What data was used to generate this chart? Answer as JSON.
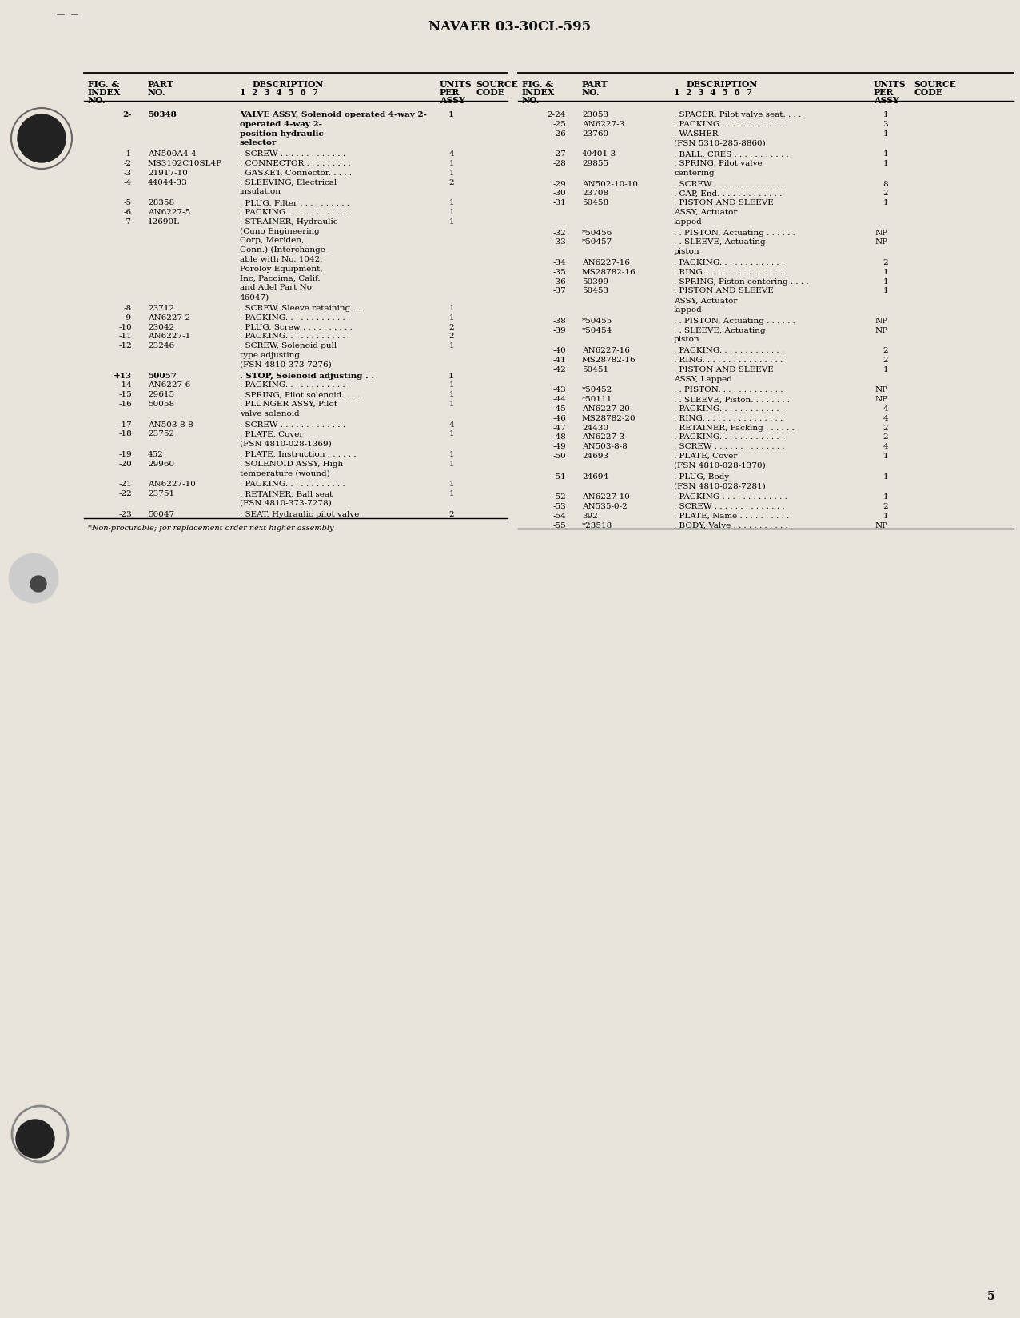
{
  "title": "NAVAER 03-30CL-595",
  "page_num": "5",
  "bg_color": "#e8e4dc",
  "text_color": "#1a1a1a",
  "left_rows": [
    {
      "idx": "2-",
      "part": "50348",
      "desc": "VALVE ASSY, Solenoid operated 4-way 2-\n        operated 4-way 2-\n        position hydraulic\n        selector",
      "qty": "1",
      "bold": true
    },
    {
      "idx": "-1",
      "part": "AN500A4-4",
      "desc": ". SCREW . . . . . . . . . . . . .",
      "qty": "4",
      "bold": false
    },
    {
      "idx": "-2",
      "part": "MS3102C10SL4P",
      "desc": ". CONNECTOR . . . . . . . . .",
      "qty": "1",
      "bold": false
    },
    {
      "idx": "-3",
      "part": "21917-10",
      "desc": ". GASKET, Connector. . . . .",
      "qty": "1",
      "bold": false
    },
    {
      "idx": "-4",
      "part": "44044-33",
      "desc": ". SLEEVING, Electrical\n                insulation",
      "qty": "2",
      "bold": false
    },
    {
      "idx": "-5",
      "part": "28358",
      "desc": ". PLUG, Filter . . . . . . . . . .",
      "qty": "1",
      "bold": false
    },
    {
      "idx": "-6",
      "part": "AN6227-5",
      "desc": ". PACKING. . . . . . . . . . . . .",
      "qty": "1",
      "bold": false
    },
    {
      "idx": "-7",
      "part": "12690L",
      "desc": ". STRAINER, Hydraulic\n            (Cuno Engineering\n            Corp, Meriden,\n            Conn.) (Interchange-\n            able with No. 1042,\n            Poroloy Equipment,\n            Inc, Pacoima, Calif.\n            and Adel Part No.\n            46047)",
      "qty": "1",
      "bold": false
    },
    {
      "idx": "-8",
      "part": "23712",
      "desc": ". SCREW, Sleeve retaining . .",
      "qty": "1",
      "bold": false
    },
    {
      "idx": "-9",
      "part": "AN6227-2",
      "desc": ". PACKING. . . . . . . . . . . . .",
      "qty": "1",
      "bold": false
    },
    {
      "idx": "-10",
      "part": "23042",
      "desc": ". PLUG, Screw . . . . . . . . . .",
      "qty": "2",
      "bold": false
    },
    {
      "idx": "-11",
      "part": "AN6227-1",
      "desc": ". PACKING. . . . . . . . . . . . .",
      "qty": "2",
      "bold": false
    },
    {
      "idx": "-12",
      "part": "23246",
      "desc": ". SCREW, Solenoid pull\n            type adjusting\n            (FSN 4810-373-7276)",
      "qty": "1",
      "bold": false
    },
    {
      "idx": "+13",
      "part": "50057",
      "desc": ". STOP, Solenoid adjusting . .",
      "qty": "1",
      "bold": true
    },
    {
      "idx": "-14",
      "part": "AN6227-6",
      "desc": ". PACKING. . . . . . . . . . . . .",
      "qty": "1",
      "bold": false
    },
    {
      "idx": "-15",
      "part": "29615",
      "desc": ". SPRING, Pilot solenoid. . . .",
      "qty": "1",
      "bold": false
    },
    {
      "idx": "-16",
      "part": "50058",
      "desc": ". PLUNGER ASSY, Pilot\n            valve solenoid",
      "qty": "1",
      "bold": false
    },
    {
      "idx": "-17",
      "part": "AN503-8-8",
      "desc": ". SCREW . . . . . . . . . . . . .",
      "qty": "4",
      "bold": false
    },
    {
      "idx": "-18",
      "part": "23752",
      "desc": ". PLATE, Cover\n            (FSN 4810-028-1369)",
      "qty": "1",
      "bold": false
    },
    {
      "idx": "-19",
      "part": "452",
      "desc": ". PLATE, Instruction . . . . . .",
      "qty": "1",
      "bold": false
    },
    {
      "idx": "-20",
      "part": "29960",
      "desc": ". SOLENOID ASSY, High\n            temperature (wound)",
      "qty": "1",
      "bold": false
    },
    {
      "idx": "-21",
      "part": "AN6227-10",
      "desc": ". PACKING. . . . . . . . . . . .",
      "qty": "1",
      "bold": false
    },
    {
      "idx": "-22",
      "part": "23751",
      "desc": ". RETAINER, Ball seat\n            (FSN 4810-373-7278)",
      "qty": "1",
      "bold": false
    },
    {
      "idx": "-23",
      "part": "50047",
      "desc": ". SEAT, Hydraulic pilot valve",
      "qty": "2",
      "bold": false
    }
  ],
  "right_rows": [
    {
      "idx": "2-24",
      "part": "23053",
      "desc": ". SPACER, Pilot valve seat. . . .",
      "qty": "1",
      "bold": false
    },
    {
      "idx": "-25",
      "part": "AN6227-3",
      "desc": ". PACKING . . . . . . . . . . . . .",
      "qty": "3",
      "bold": false
    },
    {
      "idx": "-26",
      "part": "23760",
      "desc": ". WASHER\n            (FSN 5310-285-8860)",
      "qty": "1",
      "bold": false
    },
    {
      "idx": "-27",
      "part": "40401-3",
      "desc": ". BALL, CRES . . . . . . . . . . .",
      "qty": "1",
      "bold": false
    },
    {
      "idx": "-28",
      "part": "29855",
      "desc": ". SPRING, Pilot valve\n            centering",
      "qty": "1",
      "bold": false
    },
    {
      "idx": "-29",
      "part": "AN502-10-10",
      "desc": ". SCREW . . . . . . . . . . . . . .",
      "qty": "8",
      "bold": false
    },
    {
      "idx": "-30",
      "part": "23708",
      "desc": ". CAP, End. . . . . . . . . . . . .",
      "qty": "2",
      "bold": false
    },
    {
      "idx": "-31",
      "part": "50458",
      "desc": ". PISTON AND SLEEVE\n            ASSY, Actuator\n            lapped",
      "qty": "1",
      "bold": false
    },
    {
      "idx": "-32",
      "part": "*50456",
      "desc": ". . PISTON, Actuating . . . . . .",
      "qty": "NP",
      "bold": false
    },
    {
      "idx": "-33",
      "part": "*50457",
      "desc": ". . SLEEVE, Actuating\n                piston",
      "qty": "NP",
      "bold": false
    },
    {
      "idx": "-34",
      "part": "AN6227-16",
      "desc": ". PACKING. . . . . . . . . . . . .",
      "qty": "2",
      "bold": false
    },
    {
      "idx": "-35",
      "part": "MS28782-16",
      "desc": ". RING. . . . . . . . . . . . . . . .",
      "qty": "1",
      "bold": false
    },
    {
      "idx": "-36",
      "part": "50399",
      "desc": ". SPRING, Piston centering . . . .",
      "qty": "1",
      "bold": false
    },
    {
      "idx": "-37",
      "part": "50453",
      "desc": ". PISTON AND SLEEVE\n            ASSY, Actuator\n            lapped",
      "qty": "1",
      "bold": false
    },
    {
      "idx": "-38",
      "part": "*50455",
      "desc": ". . PISTON, Actuating . . . . . .",
      "qty": "NP",
      "bold": false
    },
    {
      "idx": "-39",
      "part": "*50454",
      "desc": ". . SLEEVE, Actuating\n                piston",
      "qty": "NP",
      "bold": false
    },
    {
      "idx": "-40",
      "part": "AN6227-16",
      "desc": ". PACKING. . . . . . . . . . . . .",
      "qty": "2",
      "bold": false
    },
    {
      "idx": "-41",
      "part": "MS28782-16",
      "desc": ". RING. . . . . . . . . . . . . . . .",
      "qty": "2",
      "bold": false
    },
    {
      "idx": "-42",
      "part": "50451",
      "desc": ". PISTON AND SLEEVE\n            ASSY, Lapped",
      "qty": "1",
      "bold": false
    },
    {
      "idx": "-43",
      "part": "*50452",
      "desc": ". . PISTON. . . . . . . . . . . . .",
      "qty": "NP",
      "bold": false
    },
    {
      "idx": "-44",
      "part": "*50111",
      "desc": ". . SLEEVE, Piston. . . . . . . .",
      "qty": "NP",
      "bold": false
    },
    {
      "idx": "-45",
      "part": "AN6227-20",
      "desc": ". PACKING. . . . . . . . . . . . .",
      "qty": "4",
      "bold": false
    },
    {
      "idx": "-46",
      "part": "MS28782-20",
      "desc": ". RING. . . . . . . . . . . . . . . .",
      "qty": "4",
      "bold": false
    },
    {
      "idx": "-47",
      "part": "24430",
      "desc": ". RETAINER, Packing . . . . . .",
      "qty": "2",
      "bold": false
    },
    {
      "idx": "-48",
      "part": "AN6227-3",
      "desc": ". PACKING. . . . . . . . . . . . .",
      "qty": "2",
      "bold": false
    },
    {
      "idx": "-49",
      "part": "AN503-8-8",
      "desc": ". SCREW . . . . . . . . . . . . . .",
      "qty": "4",
      "bold": false
    },
    {
      "idx": "-50",
      "part": "24693",
      "desc": ". PLATE, Cover\n            (FSN 4810-028-1370)",
      "qty": "1",
      "bold": false
    },
    {
      "idx": "-51",
      "part": "24694",
      "desc": ". PLUG, Body\n            (FSN 4810-028-7281)",
      "qty": "1",
      "bold": false
    },
    {
      "idx": "-52",
      "part": "AN6227-10",
      "desc": ". PACKING . . . . . . . . . . . . .",
      "qty": "1",
      "bold": false
    },
    {
      "idx": "-53",
      "part": "AN535-0-2",
      "desc": ". SCREW . . . . . . . . . . . . . .",
      "qty": "2",
      "bold": false
    },
    {
      "idx": "-54",
      "part": "392",
      "desc": ". PLATE, Name . . . . . . . . . .",
      "qty": "1",
      "bold": false
    },
    {
      "idx": "-55",
      "part": "*23518",
      "desc": ". BODY, Valve . . . . . . . . . . .",
      "qty": "NP",
      "bold": false
    }
  ],
  "footnote": "*Non-procurable; for replacement order next higher assembly"
}
